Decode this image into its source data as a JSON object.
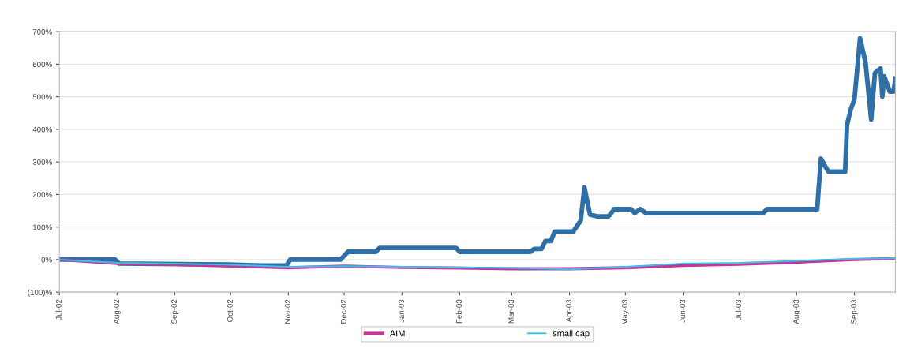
{
  "chart_data": {
    "type": "line",
    "grid": "y",
    "legend": "bottom",
    "marker": "none",
    "line_style": "solid",
    "xlim": [
      "2002-07-01",
      "2003-09-23"
    ],
    "xticks": [
      {
        "value": "2002-07-01",
        "label": "Jul-02"
      },
      {
        "value": "2002-08-01",
        "label": "Aug-02"
      },
      {
        "value": "2002-09-01",
        "label": "Sep-02"
      },
      {
        "value": "2002-10-01",
        "label": "Oct-02"
      },
      {
        "value": "2002-11-01",
        "label": "Nov-02"
      },
      {
        "value": "2002-12-01",
        "label": "Dec-02"
      },
      {
        "value": "2003-01-01",
        "label": "Jan-03"
      },
      {
        "value": "2003-02-01",
        "label": "Feb-03"
      },
      {
        "value": "2003-03-01",
        "label": "Mar-03"
      },
      {
        "value": "2003-04-01",
        "label": "Apr-03"
      },
      {
        "value": "2003-05-01",
        "label": "May-03"
      },
      {
        "value": "2003-06-01",
        "label": "Jun-03"
      },
      {
        "value": "2003-07-01",
        "label": "Jul-03"
      },
      {
        "value": "2003-08-01",
        "label": "Aug-03"
      },
      {
        "value": "2003-09-01",
        "label": "Sep-03"
      }
    ],
    "ylim": [
      -100,
      700
    ],
    "yticks": [
      {
        "value": -100,
        "label": "(100)%"
      },
      {
        "value": 0,
        "label": "0%"
      },
      {
        "value": 100,
        "label": "100%"
      },
      {
        "value": 200,
        "label": "200%"
      },
      {
        "value": 300,
        "label": "300%"
      },
      {
        "value": 400,
        "label": "400%"
      },
      {
        "value": 500,
        "label": "500%"
      },
      {
        "value": 600,
        "label": "600%"
      },
      {
        "value": 700,
        "label": "700%"
      }
    ],
    "series": [
      {
        "color": "#2f6fa8",
        "x": [
          "2002-07-01",
          "2002-07-31",
          "2002-08-02",
          "2002-09-30",
          "2002-10-17",
          "2002-10-31",
          "2002-11-02",
          "2002-11-29",
          "2002-12-03",
          "2002-12-18",
          "2002-12-20",
          "2003-01-30",
          "2003-02-01",
          "2003-03-11",
          "2003-03-13",
          "2003-03-17",
          "2003-03-19",
          "2003-03-22",
          "2003-03-24",
          "2003-04-03",
          "2003-04-07",
          "2003-04-09",
          "2003-04-12",
          "2003-04-16",
          "2003-04-22",
          "2003-04-25",
          "2003-05-04",
          "2003-05-06",
          "2003-05-09",
          "2003-05-12",
          "2003-07-14",
          "2003-07-16",
          "2003-08-12",
          "2003-08-14",
          "2003-08-18",
          "2003-08-27",
          "2003-08-28",
          "2003-08-30",
          "2003-09-01",
          "2003-09-04",
          "2003-09-07",
          "2003-09-10",
          "2003-09-12",
          "2003-09-15",
          "2003-09-16",
          "2003-09-17",
          "2003-09-20",
          "2003-09-22",
          "2003-09-23"
        ],
        "values": [
          0,
          0,
          -12,
          -15,
          -18,
          -18,
          0,
          0,
          24,
          24,
          36,
          36,
          24,
          24,
          33,
          33,
          57,
          57,
          86,
          86,
          120,
          222,
          138,
          133,
          133,
          155,
          155,
          143,
          155,
          143,
          143,
          155,
          155,
          310,
          270,
          270,
          413,
          461,
          492,
          680,
          604,
          430,
          573,
          587,
          501,
          563,
          516,
          516,
          556
        ]
      },
      {
        "name": "AIM",
        "color": "#cc3399",
        "x": [
          "2002-07-01",
          "2002-08-01",
          "2002-09-01",
          "2002-10-01",
          "2002-11-01",
          "2002-12-01",
          "2003-01-01",
          "2003-02-01",
          "2003-03-01",
          "2003-04-01",
          "2003-05-01",
          "2003-06-01",
          "2003-07-01",
          "2003-08-01",
          "2003-09-01",
          "2003-09-23"
        ],
        "values": [
          0,
          -12,
          -15,
          -20,
          -25,
          -20,
          -24,
          -26,
          -28,
          -28,
          -25,
          -18,
          -14,
          -8,
          0,
          3
        ]
      },
      {
        "name": "small cap",
        "color": "#33c3ec",
        "x": [
          "2002-07-01",
          "2002-08-01",
          "2002-09-01",
          "2002-10-01",
          "2002-11-01",
          "2002-12-01",
          "2003-01-01",
          "2003-02-01",
          "2003-03-01",
          "2003-04-01",
          "2003-05-01",
          "2003-06-01",
          "2003-07-01",
          "2003-08-01",
          "2003-09-01",
          "2003-09-23"
        ],
        "values": [
          0,
          -10,
          -12,
          -16,
          -22,
          -20,
          -22,
          -24,
          -26,
          -30,
          -22,
          -12,
          -10,
          -4,
          3,
          4
        ]
      }
    ]
  }
}
